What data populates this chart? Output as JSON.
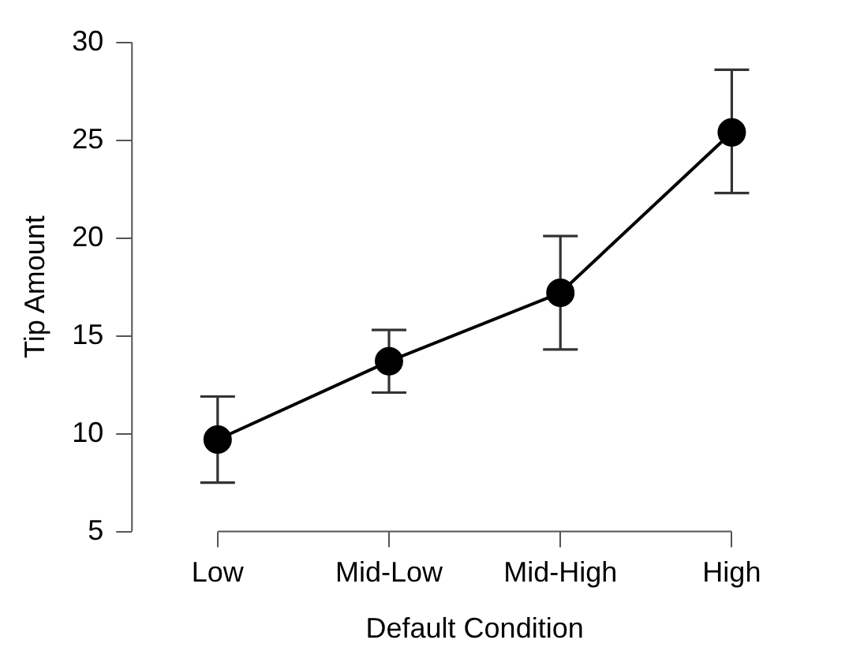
{
  "chart_data": {
    "type": "line",
    "xlabel": "Default Condition",
    "ylabel": "Tip Amount",
    "categories": [
      "Low",
      "Mid-Low",
      "Mid-High",
      "High"
    ],
    "series": [
      {
        "color": "#000000",
        "values": [
          9.7,
          13.7,
          17.2,
          25.4
        ],
        "errors": [
          [
            7.5,
            11.9
          ],
          [
            12.1,
            15.3
          ],
          [
            14.3,
            20.1
          ],
          [
            22.3,
            28.6
          ]
        ]
      }
    ],
    "ylim": [
      5,
      30
    ],
    "yticks": [
      5,
      10,
      15,
      20,
      25,
      30
    ],
    "grid": false,
    "legend": false,
    "marker": "circle",
    "line_style": "solid"
  }
}
